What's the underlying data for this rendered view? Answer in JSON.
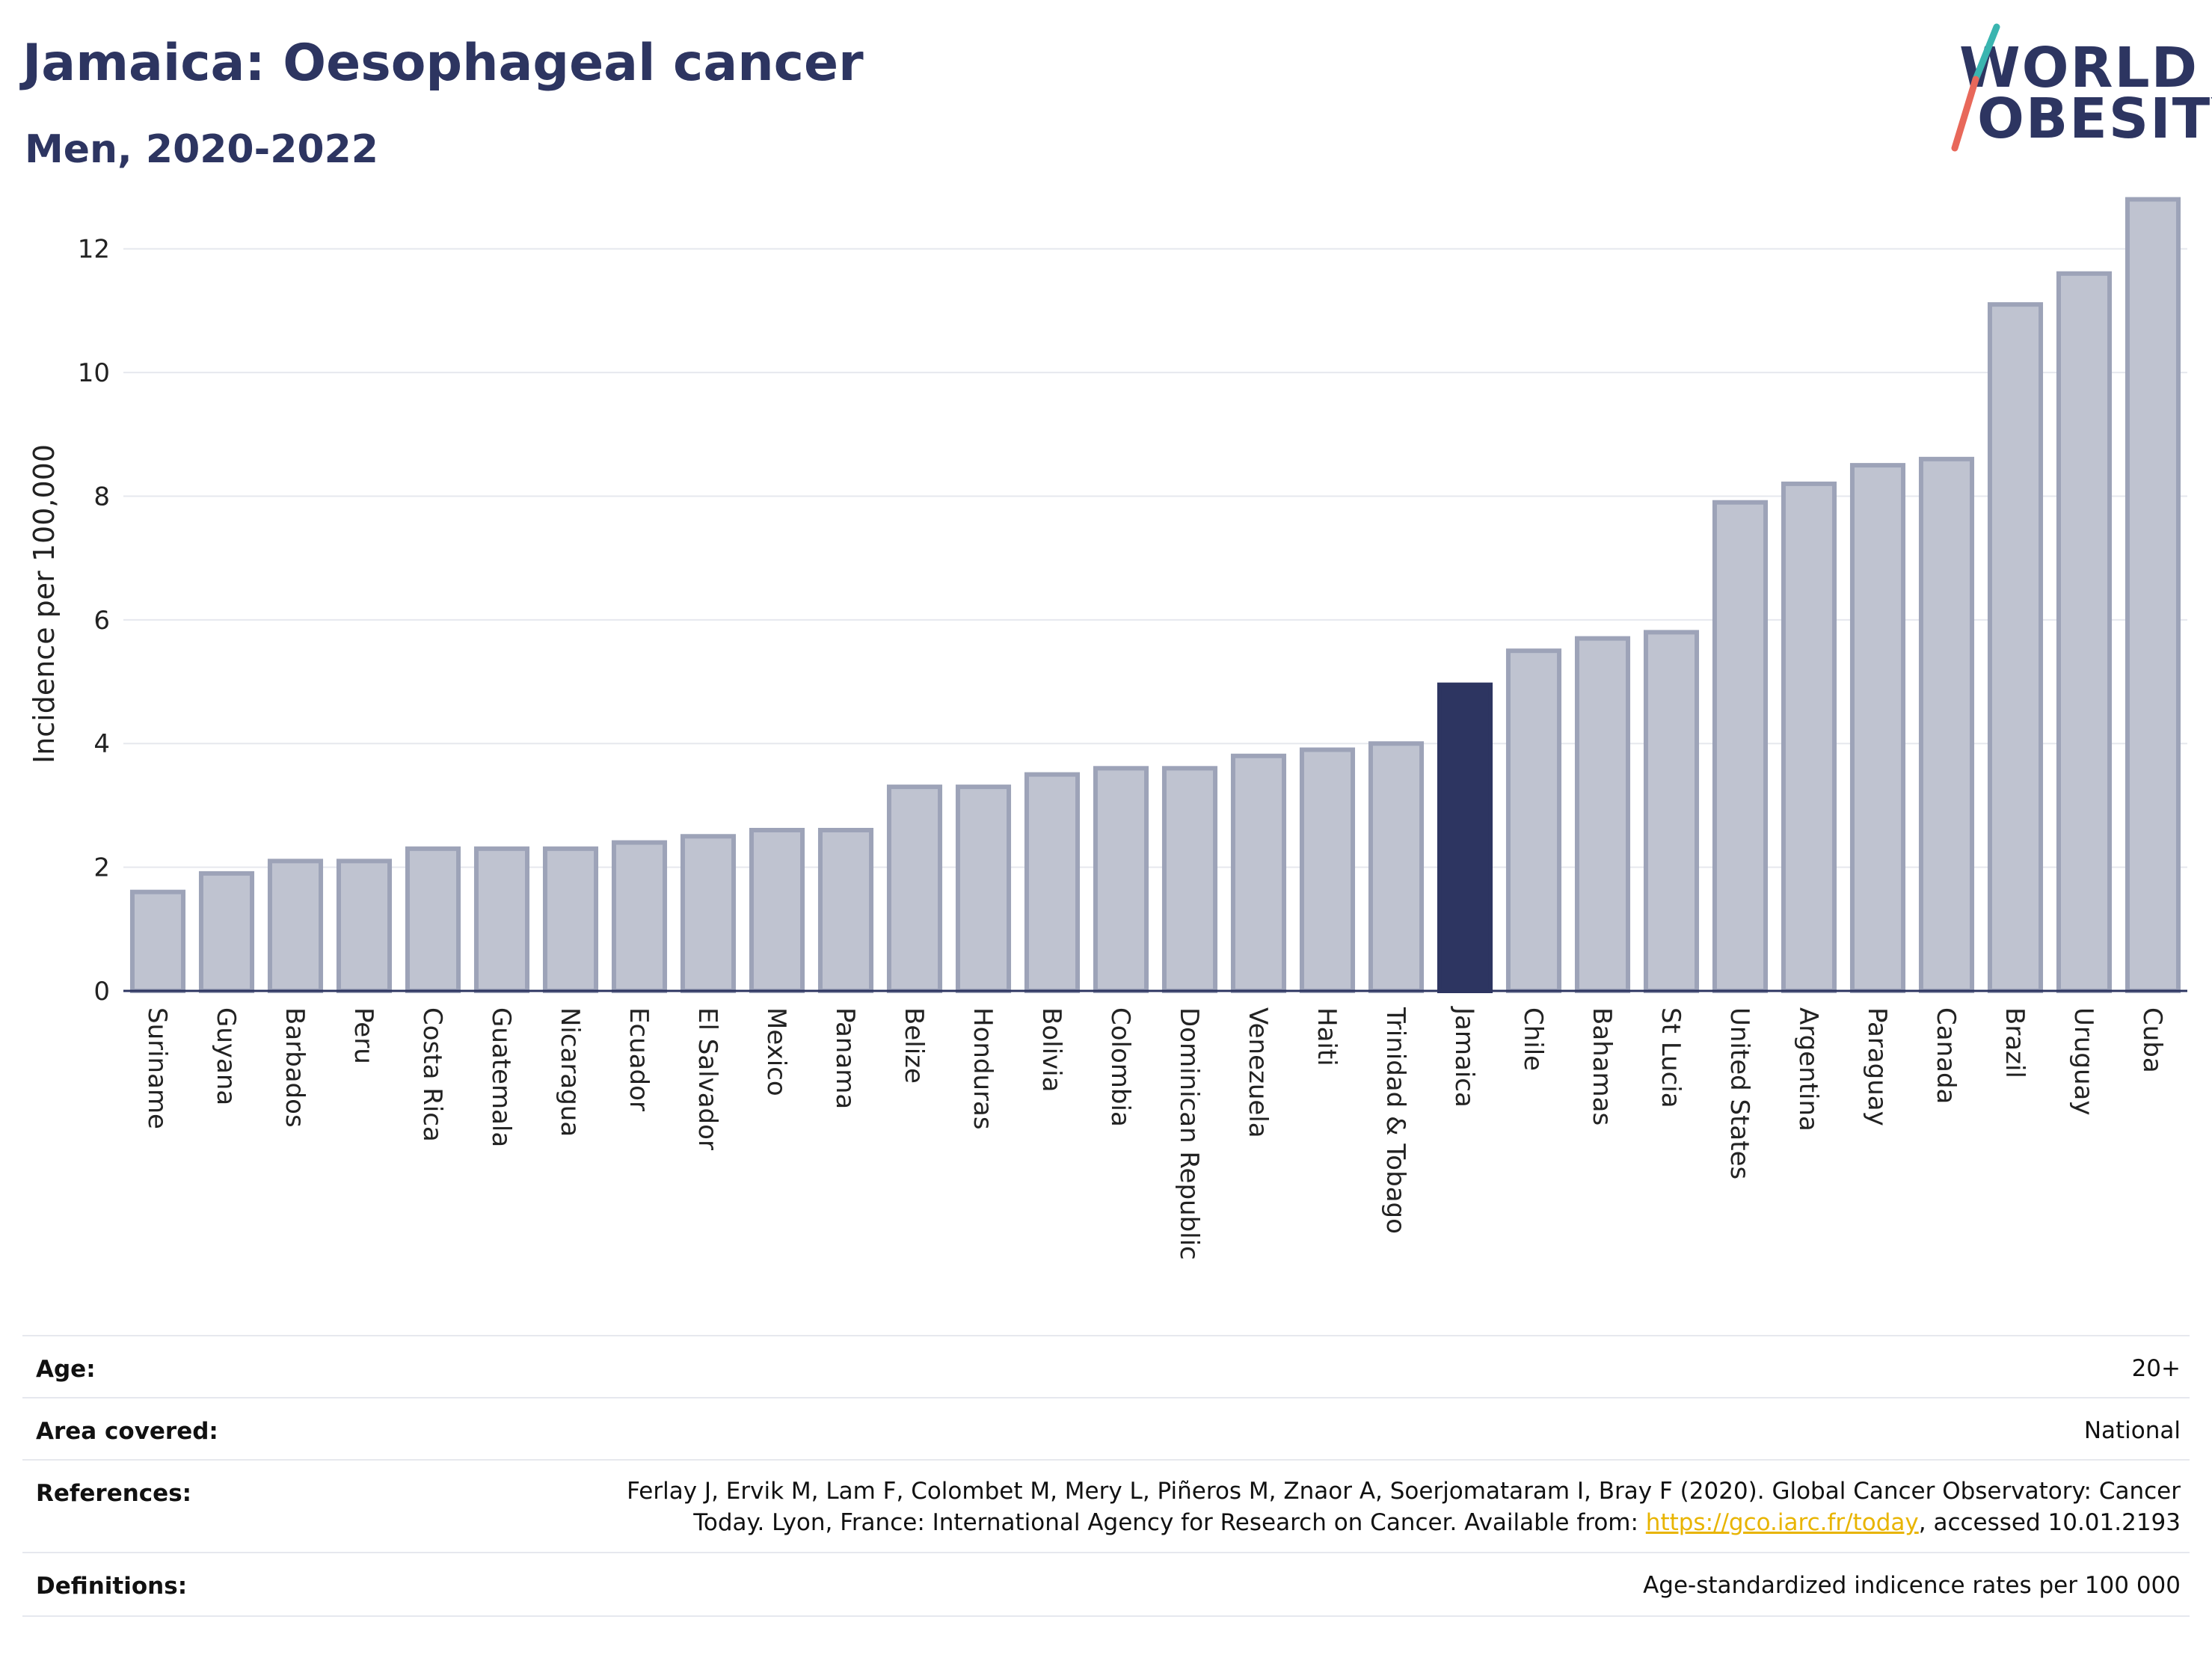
{
  "header": {
    "title": "Jamaica: Oesophageal cancer",
    "subtitle": "Men, 2020-2022"
  },
  "logo": {
    "line1": "WORLD",
    "line2": "OBESITY",
    "colors": {
      "text": "#2d3561",
      "slash_top": "#3ab5b0",
      "slash_bottom": "#e8685a"
    }
  },
  "colors": {
    "bar_default": "#bfc3d0",
    "bar_default_stroke": "#9da3b8",
    "bar_highlight": "#2d3561",
    "grid": "#e6e8ee"
  },
  "chart_data": {
    "type": "bar",
    "ylabel": "Incidence per 100,000",
    "ylim": [
      0,
      13
    ],
    "yticks": [
      0,
      2,
      4,
      6,
      8,
      10,
      12
    ],
    "grid": true,
    "highlight": "Jamaica",
    "categories": [
      "Suriname",
      "Guyana",
      "Barbados",
      "Peru",
      "Costa Rica",
      "Guatemala",
      "Nicaragua",
      "Ecuador",
      "El Salvador",
      "Mexico",
      "Panama",
      "Belize",
      "Honduras",
      "Bolivia",
      "Colombia",
      "Dominican Republic",
      "Venezuela",
      "Haiti",
      "Trinidad & Tobago",
      "Jamaica",
      "Chile",
      "Bahamas",
      "St Lucia",
      "United States",
      "Argentina",
      "Paraguay",
      "Canada",
      "Brazil",
      "Uruguay",
      "Cuba"
    ],
    "values": [
      1.6,
      1.9,
      2.1,
      2.1,
      2.3,
      2.3,
      2.3,
      2.4,
      2.5,
      2.6,
      2.6,
      3.3,
      3.3,
      3.5,
      3.6,
      3.6,
      3.8,
      3.9,
      4.0,
      4.95,
      5.5,
      5.7,
      5.8,
      7.9,
      8.2,
      8.5,
      8.6,
      11.1,
      11.6,
      12.8
    ]
  },
  "meta": {
    "age_label": "Age:",
    "age_value": "20+",
    "area_label": "Area covered:",
    "area_value": "National",
    "references_label": "References:",
    "references_line1": "Ferlay J, Ervik M, Lam F, Colombet M, Mery L, Piñeros M, Znaor A, Soerjomataram I, Bray F (2020). Global Cancer Observatory: Cancer",
    "references_line2_pre": "Today. Lyon, France: International Agency for Research on Cancer. Available from: ",
    "references_link": "https://gco.iarc.fr/today",
    "references_line2_post": ", accessed 10.01.2193",
    "definitions_label": "Definitions:",
    "definitions_value": "Age-standardized indicence rates per 100 000"
  }
}
